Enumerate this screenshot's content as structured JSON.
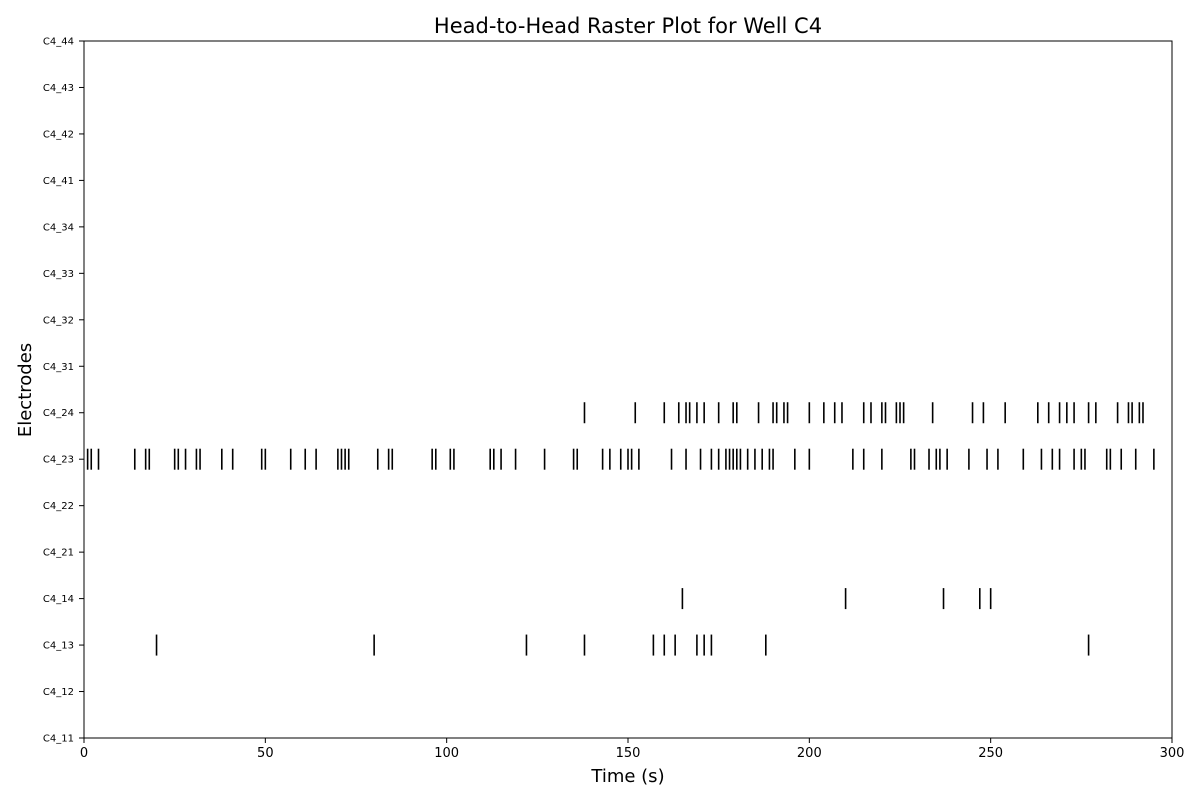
{
  "chart_data": {
    "type": "raster",
    "title": "Head-to-Head Raster Plot for Well C4",
    "xlabel": "Time (s)",
    "ylabel": "Electrodes",
    "xlim": [
      0,
      300
    ],
    "xticks": [
      0,
      50,
      100,
      150,
      200,
      250,
      300
    ],
    "grid": false,
    "electrodes": [
      "C4_11",
      "C4_12",
      "C4_13",
      "C4_14",
      "C4_21",
      "C4_22",
      "C4_23",
      "C4_24",
      "C4_31",
      "C4_32",
      "C4_33",
      "C4_34",
      "C4_41",
      "C4_42",
      "C4_43",
      "C4_44"
    ],
    "series": [
      {
        "electrode": "C4_13",
        "spikes": [
          20,
          80,
          122,
          138,
          157,
          160,
          163,
          169,
          171,
          173,
          188,
          277
        ]
      },
      {
        "electrode": "C4_14",
        "spikes": [
          165,
          210,
          237,
          247,
          250
        ]
      },
      {
        "electrode": "C4_23",
        "spikes": [
          1,
          2,
          4,
          14,
          17,
          18,
          25,
          26,
          28,
          31,
          32,
          38,
          41,
          49,
          50,
          57,
          61,
          64,
          70,
          71,
          72,
          73,
          81,
          84,
          85,
          96,
          97,
          101,
          102,
          112,
          113,
          115,
          119,
          127,
          135,
          136,
          143,
          145,
          148,
          150,
          151,
          153,
          162,
          166,
          170,
          173,
          175,
          177,
          178,
          179,
          180,
          181,
          183,
          185,
          187,
          189,
          190,
          196,
          200,
          212,
          215,
          220,
          228,
          229,
          233,
          235,
          236,
          238,
          244,
          249,
          252,
          259,
          264,
          267,
          269,
          273,
          275,
          276,
          282,
          283,
          286,
          290,
          295
        ]
      },
      {
        "electrode": "C4_24",
        "spikes": [
          138,
          152,
          160,
          164,
          166,
          167,
          169,
          171,
          175,
          179,
          180,
          186,
          190,
          191,
          193,
          194,
          200,
          204,
          207,
          209,
          215,
          217,
          220,
          221,
          224,
          225,
          226,
          234,
          245,
          248,
          254,
          263,
          266,
          269,
          271,
          273,
          277,
          279,
          285,
          288,
          289,
          291,
          292
        ]
      }
    ]
  }
}
